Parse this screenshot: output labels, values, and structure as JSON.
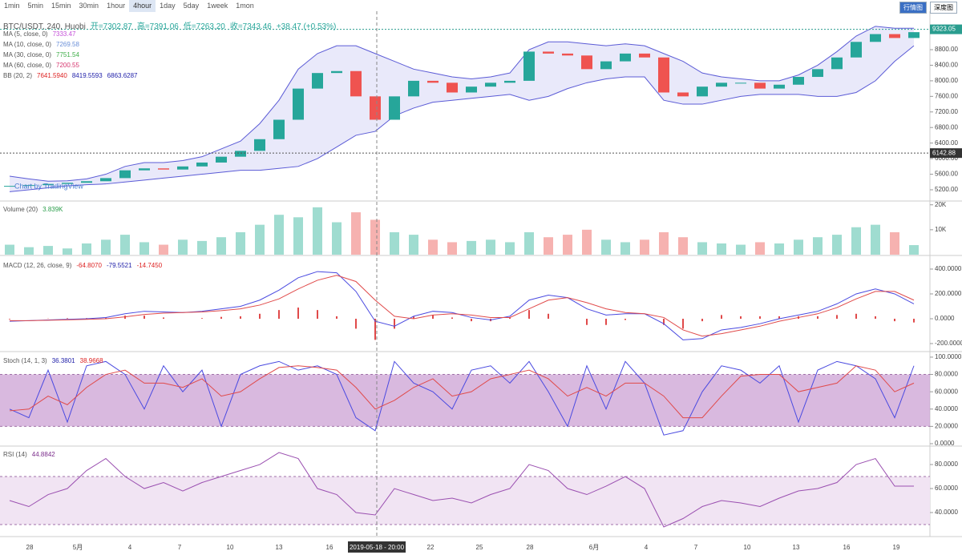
{
  "toolbar": {
    "intervals": [
      "1min",
      "5min",
      "15min",
      "30min",
      "1hour",
      "4hour",
      "1day",
      "5day",
      "1week",
      "1mon"
    ],
    "active": "4hour",
    "buttons": [
      "行情图",
      "深度图"
    ]
  },
  "legend": {
    "symbol": "BTC/USDT, 240, Huobi",
    "open": "开=7302.87",
    "high": "高=7391.06",
    "low": "低=7263.20",
    "close": "收=7343.46",
    "change": "+38.47 (+0.53%)",
    "indicators": [
      {
        "name": "MA (5, close, 0)",
        "values": [
          "7333.47"
        ],
        "colors": [
          "#c44fd8"
        ]
      },
      {
        "name": "MA (10, close, 0)",
        "values": [
          "7269.58"
        ],
        "colors": [
          "#6a8fd8"
        ]
      },
      {
        "name": "MA (30, close, 0)",
        "values": [
          "7751.54"
        ],
        "colors": [
          "#3fae49"
        ]
      },
      {
        "name": "MA (60, close, 0)",
        "values": [
          "7200.55"
        ],
        "colors": [
          "#d6356e"
        ]
      },
      {
        "name": "BB (20, 2)",
        "values": [
          "7641.5940",
          "8419.5593",
          "6863.6287"
        ],
        "colors": [
          "#d22",
          "#22a",
          "#22a"
        ]
      }
    ],
    "volume": {
      "name": "Volume (20)",
      "values": [
        "3.839K"
      ],
      "colors": [
        "#2a9d4a"
      ]
    },
    "macd": {
      "name": "MACD (12, 26, close, 9)",
      "values": [
        "-64.8070",
        "-79.5521",
        "-14.7450"
      ],
      "colors": [
        "#d22",
        "#22a",
        "#d22"
      ]
    },
    "stoch": {
      "name": "Stoch (14, 1, 3)",
      "values": [
        "36.3801",
        "38.9668"
      ],
      "colors": [
        "#22a",
        "#d22"
      ]
    },
    "rsi": {
      "name": "RSI (14)",
      "values": [
        "44.8842"
      ],
      "colors": [
        "#7b2d8b"
      ]
    }
  },
  "watermark": "Chart by TradingView",
  "price_labels": [
    {
      "value": 9323.05,
      "label": "9323.05"
    },
    {
      "value": 6142.88,
      "label": "6142.88"
    }
  ],
  "crosshair": "2019-05-18 - 20:00",
  "chart_data": [
    {
      "type": "candlestick",
      "ylim": [
        4932,
        9788
      ],
      "yticks": [
        {
          "value": 5200,
          "label": "5200.00"
        },
        {
          "value": 5600,
          "label": "5600.00"
        },
        {
          "value": 6000,
          "label": "6000.00"
        },
        {
          "value": 6400,
          "label": "6400.00"
        },
        {
          "value": 6800,
          "label": "6800.00"
        },
        {
          "value": 7200,
          "label": "7200.00"
        },
        {
          "value": 7600,
          "label": "7600.00"
        },
        {
          "value": 8000,
          "label": "8000.00"
        },
        {
          "value": 8400,
          "label": "8400.00"
        },
        {
          "value": 8800,
          "label": "8800.00"
        }
      ],
      "open": [
        5280,
        5300,
        5320,
        5350,
        5380,
        5420,
        5500,
        5700,
        5750,
        5720,
        5800,
        5900,
        6050,
        6200,
        6500,
        7000,
        7800,
        8200,
        8250,
        7600,
        7000,
        7600,
        8000,
        7950,
        7700,
        7850,
        7950,
        8000,
        8750,
        8700,
        8650,
        8300,
        8500,
        8700,
        8600,
        7700,
        7600,
        7850,
        7950,
        7950,
        7800,
        7900,
        8100,
        8300,
        8600,
        9000,
        9200,
        9100
      ],
      "close": [
        5300,
        5320,
        5350,
        5380,
        5420,
        5500,
        5700,
        5750,
        5720,
        5800,
        5900,
        6050,
        6200,
        6500,
        7000,
        7800,
        8200,
        8250,
        7600,
        7000,
        7600,
        8000,
        7950,
        7700,
        7850,
        7950,
        8000,
        8750,
        8700,
        8650,
        8300,
        8500,
        8700,
        8600,
        7700,
        7600,
        7850,
        7950,
        7950,
        7800,
        7900,
        8100,
        8300,
        8600,
        9000,
        9200,
        9100,
        9250
      ],
      "bb_upper": [
        5550,
        5480,
        5420,
        5430,
        5480,
        5600,
        5800,
        5900,
        5900,
        5950,
        6050,
        6250,
        6450,
        6900,
        7500,
        8300,
        8700,
        8900,
        8900,
        8700,
        8500,
        8300,
        8200,
        8100,
        8050,
        8100,
        8200,
        8800,
        9000,
        9000,
        8950,
        8900,
        8950,
        8900,
        8700,
        8500,
        8200,
        8100,
        8050,
        8000,
        8000,
        8150,
        8400,
        8750,
        9150,
        9400,
        9350,
        9350
      ],
      "bb_lower": [
        5150,
        5200,
        5250,
        5300,
        5330,
        5350,
        5400,
        5450,
        5500,
        5550,
        5600,
        5650,
        5700,
        5700,
        5750,
        5800,
        6000,
        6300,
        6600,
        6700,
        7100,
        7300,
        7450,
        7500,
        7550,
        7600,
        7650,
        7500,
        7600,
        7800,
        7950,
        8050,
        8100,
        8100,
        7500,
        7400,
        7400,
        7500,
        7600,
        7650,
        7650,
        7650,
        7600,
        7600,
        7700,
        8000,
        8500,
        8900
      ],
      "up_color": "#26a69a",
      "down_color": "#ef5350"
    },
    {
      "type": "bar",
      "ylim": [
        0,
        21200
      ],
      "yticks": [
        {
          "value": 10000,
          "label": "10K"
        },
        {
          "value": 20000,
          "label": "20K"
        }
      ],
      "values": [
        4000,
        3000,
        3500,
        2500,
        4500,
        6000,
        8000,
        5000,
        4000,
        6000,
        5500,
        7000,
        9000,
        12000,
        16000,
        15000,
        19000,
        13000,
        17000,
        14000,
        9000,
        8000,
        6000,
        5000,
        5500,
        6000,
        5000,
        9000,
        7000,
        8000,
        10000,
        6000,
        5000,
        6000,
        9000,
        7000,
        5000,
        4500,
        4000,
        5000,
        4500,
        6000,
        7000,
        8000,
        11000,
        12000,
        9000,
        3839
      ]
    },
    {
      "type": "line",
      "ylim": [
        -258,
        503
      ],
      "yticks": [
        {
          "value": 400,
          "label": "400.0000"
        },
        {
          "value": 200,
          "label": "200.0000"
        },
        {
          "value": 0,
          "label": "0.0000"
        },
        {
          "value": -200,
          "label": "-200.0000"
        }
      ],
      "series": [
        {
          "color": "#4a4ae0",
          "values": [
            -20,
            -15,
            -10,
            -5,
            0,
            10,
            40,
            60,
            55,
            50,
            60,
            80,
            100,
            150,
            230,
            330,
            380,
            370,
            220,
            -20,
            -60,
            20,
            60,
            50,
            10,
            -10,
            20,
            150,
            190,
            170,
            80,
            30,
            40,
            40,
            -40,
            -170,
            -160,
            -90,
            -70,
            -40,
            0,
            30,
            60,
            120,
            200,
            240,
            200,
            120
          ]
        },
        {
          "color": "#e04a4a",
          "values": [
            -15,
            -15,
            -12,
            -9,
            -5,
            0,
            15,
            35,
            45,
            50,
            55,
            65,
            80,
            110,
            160,
            240,
            310,
            350,
            300,
            150,
            20,
            0,
            30,
            40,
            30,
            10,
            10,
            80,
            150,
            170,
            130,
            80,
            50,
            40,
            10,
            -90,
            -140,
            -120,
            -90,
            -60,
            -20,
            10,
            40,
            90,
            160,
            220,
            220,
            150
          ]
        }
      ],
      "histogram": {
        "color": "#e04a4a",
        "values": [
          -5,
          0,
          2,
          4,
          5,
          10,
          25,
          25,
          10,
          0,
          5,
          15,
          20,
          40,
          70,
          90,
          70,
          20,
          -80,
          -170,
          -80,
          20,
          30,
          10,
          -20,
          -20,
          10,
          70,
          40,
          0,
          -50,
          -50,
          -10,
          0,
          -50,
          -80,
          -20,
          30,
          20,
          20,
          20,
          20,
          20,
          30,
          40,
          20,
          -20,
          -30
        ]
      }
    },
    {
      "type": "line",
      "ylim": [
        -1.85,
        105.5
      ],
      "band": [
        20,
        80
      ],
      "yticks": [
        {
          "value": 0,
          "label": "0.0000"
        },
        {
          "value": 20,
          "label": "20.0000"
        },
        {
          "value": 40,
          "label": "40.0000"
        },
        {
          "value": 60,
          "label": "60.0000"
        },
        {
          "value": 80,
          "label": "80.0000"
        },
        {
          "value": 100,
          "label": "100.0000"
        }
      ],
      "series": [
        {
          "color": "#4a4ae0",
          "values": [
            40,
            30,
            85,
            25,
            90,
            95,
            80,
            40,
            90,
            60,
            85,
            20,
            80,
            90,
            95,
            85,
            90,
            80,
            30,
            15,
            95,
            70,
            60,
            40,
            85,
            90,
            70,
            95,
            60,
            20,
            90,
            40,
            95,
            70,
            10,
            15,
            60,
            90,
            85,
            70,
            90,
            25,
            85,
            95,
            90,
            75,
            30,
            90
          ]
        },
        {
          "color": "#e04a4a",
          "values": [
            38,
            40,
            55,
            45,
            65,
            80,
            85,
            70,
            70,
            65,
            75,
            55,
            60,
            75,
            88,
            90,
            88,
            85,
            65,
            40,
            50,
            65,
            75,
            55,
            60,
            75,
            80,
            85,
            75,
            55,
            65,
            55,
            70,
            70,
            55,
            30,
            30,
            55,
            78,
            80,
            80,
            60,
            65,
            70,
            90,
            85,
            60,
            70
          ]
        }
      ]
    },
    {
      "type": "line",
      "ylim": [
        20,
        94.7
      ],
      "band": [
        30,
        70
      ],
      "yticks": [
        {
          "value": 40,
          "label": "40.0000"
        },
        {
          "value": 60,
          "label": "60.0000"
        },
        {
          "value": 80,
          "label": "80.0000"
        }
      ],
      "series": [
        {
          "color": "#9a4fb0",
          "values": [
            50,
            45,
            55,
            60,
            75,
            85,
            70,
            60,
            65,
            58,
            65,
            70,
            75,
            80,
            90,
            85,
            60,
            55,
            40,
            38,
            60,
            55,
            50,
            52,
            48,
            55,
            60,
            80,
            75,
            60,
            55,
            62,
            70,
            60,
            28,
            35,
            45,
            50,
            48,
            45,
            52,
            58,
            60,
            65,
            80,
            85,
            62,
            62
          ]
        }
      ]
    }
  ],
  "x_labels": [
    "28",
    "5月",
    "4",
    "7",
    "10",
    "13",
    "16",
    "22",
    "25",
    "28",
    "6月",
    "4",
    "7",
    "10",
    "13",
    "16",
    "19"
  ]
}
